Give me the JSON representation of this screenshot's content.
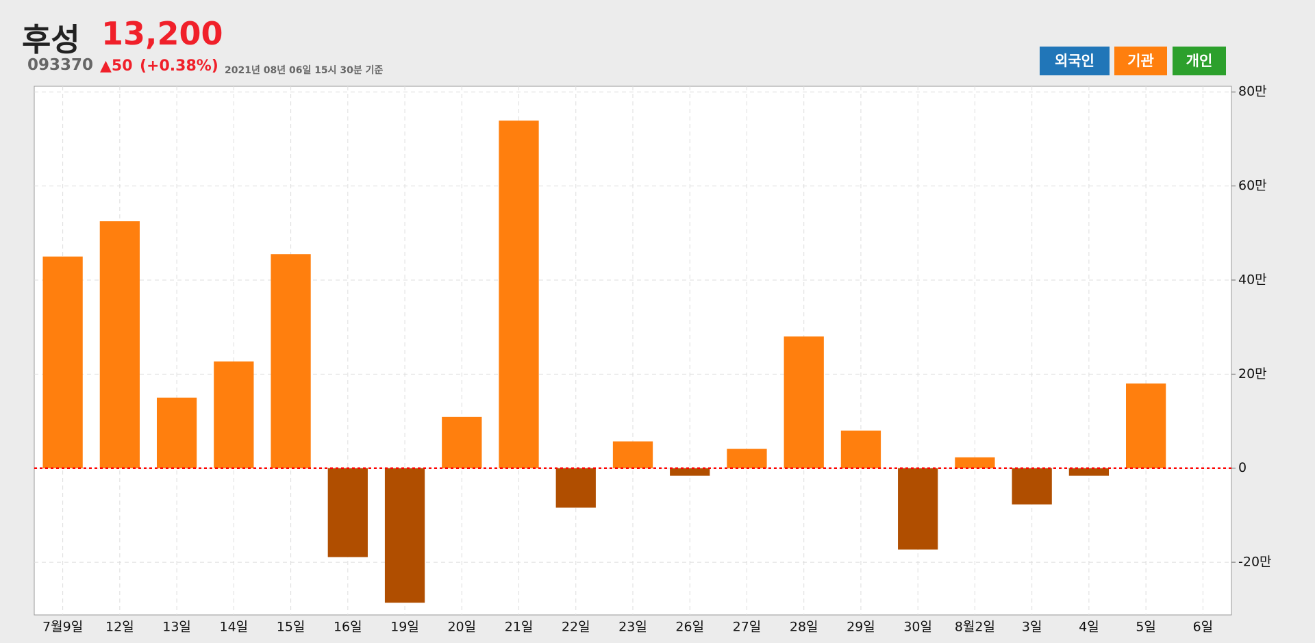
{
  "header": {
    "title": "후성",
    "price": "13,200",
    "code": "093370",
    "change": "▲50",
    "change_pct": "(+0.38%)",
    "timestamp": "2021년 08년 06일 15시 30분 기준"
  },
  "buttons": [
    {
      "label": "외국인",
      "color": "#2176b8"
    },
    {
      "label": "기관",
      "color": "#ff7f0e"
    },
    {
      "label": "개인",
      "color": "#2ca02c"
    }
  ],
  "chart_data": {
    "type": "bar",
    "categories": [
      "7월9일",
      "12일",
      "13일",
      "14일",
      "15일",
      "16일",
      "19일",
      "20일",
      "21일",
      "22일",
      "23일",
      "26일",
      "27일",
      "28일",
      "29일",
      "30일",
      "8월2일",
      "3일",
      "4일",
      "5일",
      "6일"
    ],
    "values": [
      45.0,
      52.5,
      15.0,
      22.7,
      45.5,
      -18.9,
      -28.6,
      10.9,
      73.9,
      -8.4,
      5.7,
      -1.6,
      4.1,
      28.0,
      8.0,
      -17.3,
      2.3,
      -7.7,
      -1.6,
      18.0,
      0
    ],
    "color": "#ff7f0e",
    "negative_color": "#b04e00",
    "ylim": [
      -31.2,
      81.2
    ],
    "yticks": [
      {
        "value": 80,
        "label": "80만"
      },
      {
        "value": 60,
        "label": "60만"
      },
      {
        "value": 40,
        "label": "40만"
      },
      {
        "value": 20,
        "label": "20만"
      },
      0,
      {
        "value": -20,
        "label": "-20만"
      }
    ],
    "grid": true
  }
}
